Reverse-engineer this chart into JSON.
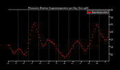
{
  "title": "Milwaukee Weather Evapotranspiration per Day (Ozs sq/ft)",
  "background_color": "#000000",
  "plot_bg": "#000000",
  "legend_label": "Evapotranspiration",
  "legend_color": "#ff0000",
  "dot_color": "#ff0000",
  "title_color": "#ffffff",
  "tick_color": "#ffffff",
  "grid_color": "#555555",
  "ylim": [
    0,
    3.5
  ],
  "ytick_values": [
    0.5,
    1.0,
    1.5,
    2.0,
    2.5,
    3.0,
    3.5
  ],
  "x_values": [
    0,
    1,
    2,
    3,
    4,
    5,
    6,
    7,
    8,
    9,
    10,
    11,
    12,
    13,
    14,
    15,
    16,
    17,
    18,
    19,
    20,
    21,
    22,
    23,
    24,
    25,
    26,
    27,
    28,
    29,
    30,
    31,
    32,
    33,
    34,
    35,
    36,
    37,
    38,
    39,
    40,
    41,
    42,
    43,
    44,
    45,
    46,
    47,
    48,
    49,
    50,
    51,
    52,
    53,
    54,
    55,
    56,
    57,
    58,
    59,
    60,
    61,
    62,
    63,
    64,
    65,
    66,
    67,
    68,
    69,
    70,
    71,
    72,
    73,
    74,
    75,
    76,
    77,
    78,
    79,
    80,
    81,
    82,
    83,
    84,
    85,
    86,
    87,
    88,
    89,
    90,
    91,
    92,
    93,
    94,
    95,
    96,
    97,
    98,
    99,
    100
  ],
  "y_values": [
    1.1,
    1.05,
    0.9,
    0.8,
    0.7,
    0.6,
    0.5,
    0.6,
    0.7,
    0.8,
    0.9,
    0.85,
    0.8,
    0.7,
    0.6,
    0.5,
    0.45,
    0.4,
    0.6,
    0.9,
    1.2,
    1.5,
    1.8,
    2.1,
    2.3,
    2.5,
    2.6,
    2.4,
    2.2,
    2.0,
    1.8,
    1.6,
    1.4,
    1.2,
    1.1,
    1.0,
    1.1,
    1.2,
    1.4,
    1.5,
    1.45,
    1.4,
    1.35,
    1.3,
    1.25,
    1.2,
    1.15,
    1.0,
    0.9,
    0.8,
    0.7,
    0.6,
    0.5,
    0.4,
    0.35,
    0.3,
    0.25,
    0.3,
    0.4,
    0.5,
    0.6,
    0.7,
    0.8,
    0.9,
    1.0,
    1.1,
    1.2,
    1.3,
    1.35,
    1.4,
    1.3,
    1.2,
    1.1,
    1.0,
    0.9,
    0.8,
    0.7,
    0.8,
    0.9,
    1.0,
    1.1,
    1.2,
    1.4,
    1.6,
    1.8,
    2.0,
    2.2,
    2.4,
    2.5,
    2.3,
    2.1,
    1.9,
    1.8,
    1.7,
    1.6,
    1.5,
    1.4,
    1.5,
    1.6,
    1.8,
    2.0
  ],
  "vline_positions": [
    10,
    20,
    30,
    40,
    50,
    60,
    70,
    80,
    90
  ],
  "xlim": [
    0,
    100
  ],
  "x_tick_positions": [
    0,
    4,
    8,
    12,
    16,
    20,
    24,
    28,
    32,
    36,
    40,
    44,
    48,
    52,
    56,
    60,
    64,
    68,
    72,
    76,
    80,
    84,
    88,
    92,
    96,
    100
  ]
}
